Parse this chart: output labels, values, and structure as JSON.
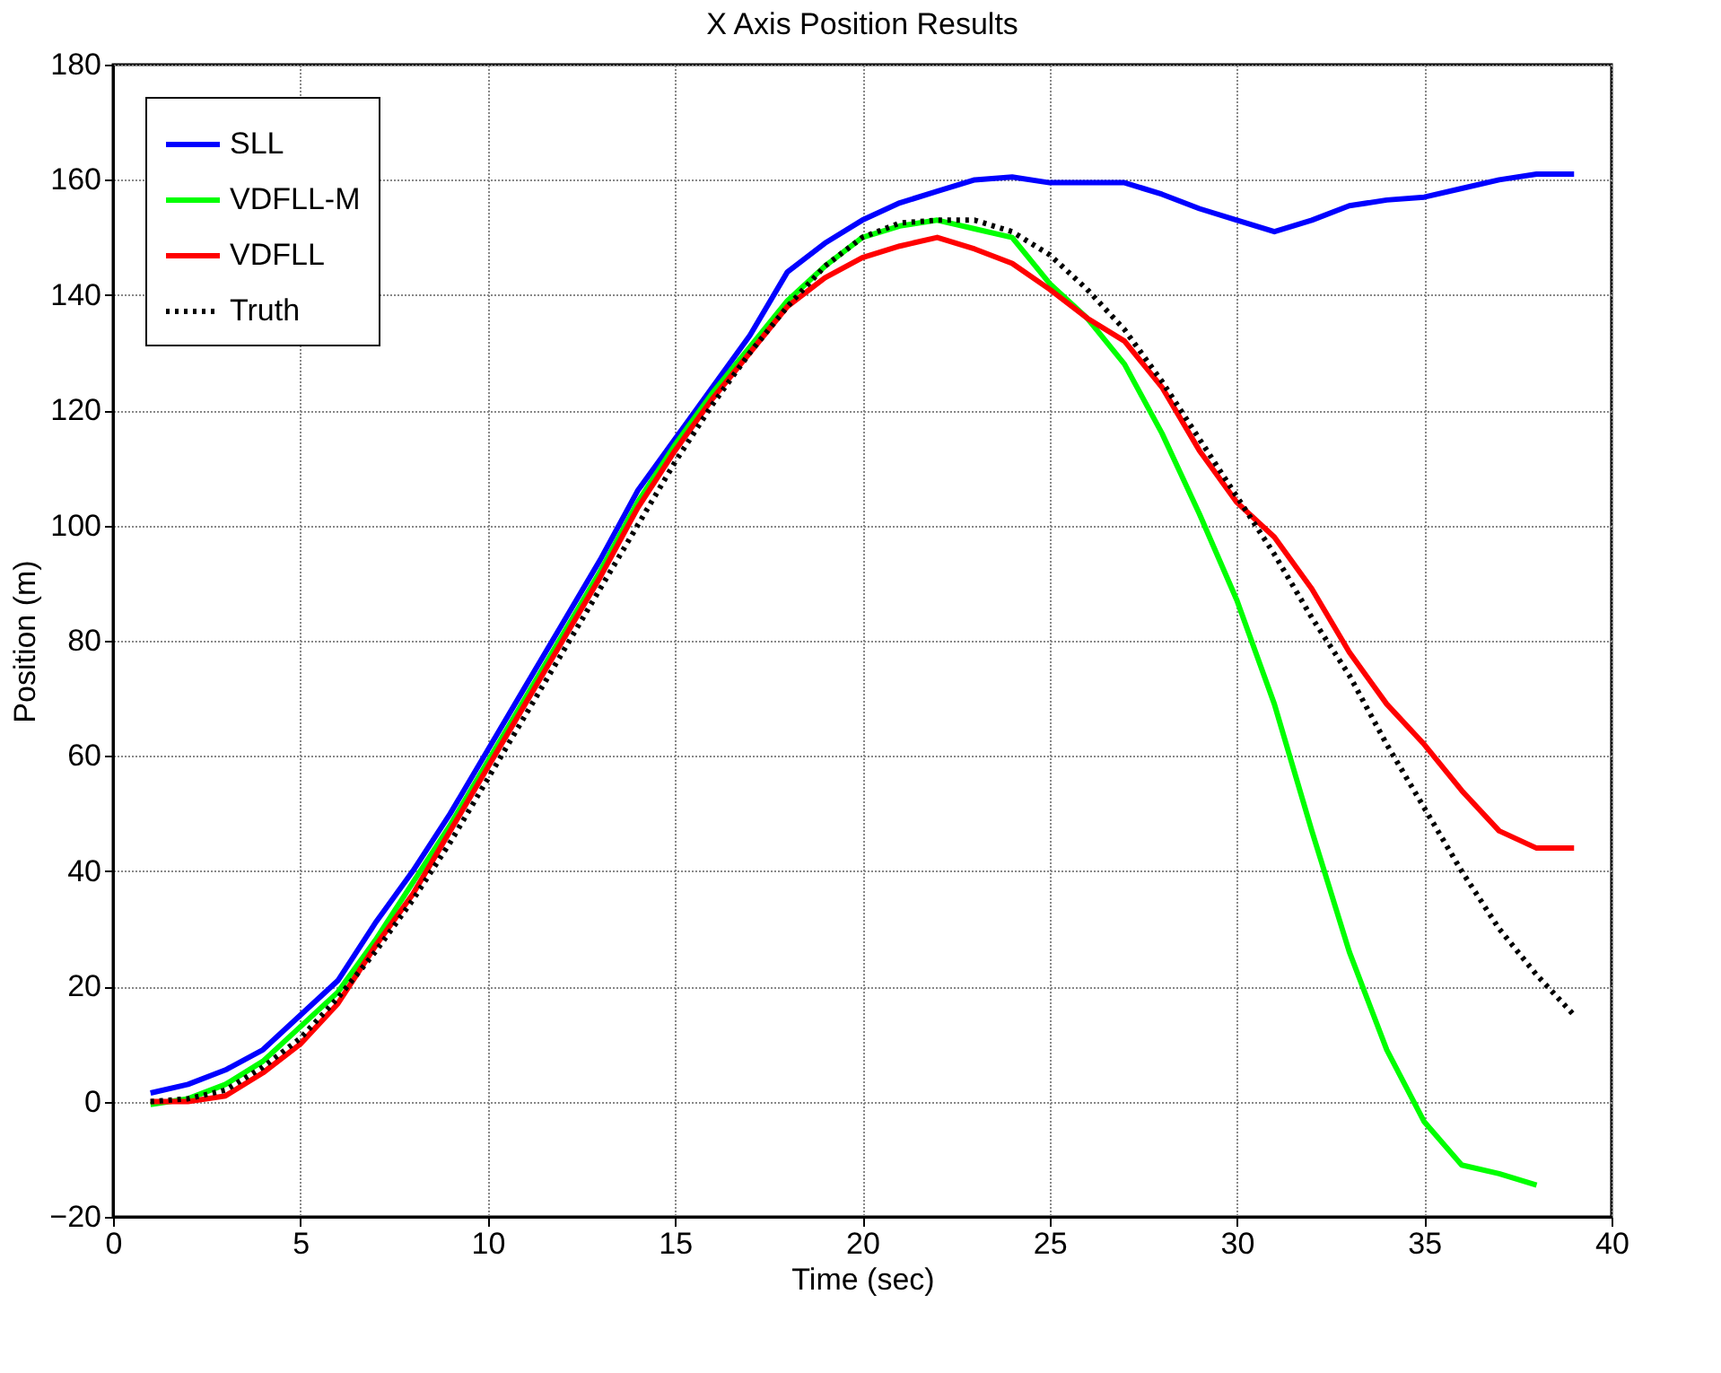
{
  "chart_data": {
    "type": "line",
    "title": "X Axis Position Results",
    "xlabel": "Time (sec)",
    "ylabel": "Position (m)",
    "xlim": [
      0,
      40
    ],
    "xticks": [
      0,
      5,
      10,
      15,
      20,
      25,
      30,
      35,
      40
    ],
    "ylim": [
      -20,
      180
    ],
    "yticks": [
      -20,
      0,
      20,
      40,
      60,
      80,
      100,
      120,
      140,
      160,
      180
    ],
    "grid": true,
    "legend": "top left",
    "x": [
      1,
      2,
      3,
      4,
      5,
      6,
      7,
      8,
      9,
      10,
      11,
      12,
      13,
      14,
      15,
      16,
      17,
      18,
      19,
      20,
      21,
      22,
      23,
      24,
      25,
      26,
      27,
      28,
      29,
      30,
      31,
      32,
      33,
      34,
      35,
      36,
      37,
      38,
      39
    ],
    "series": [
      {
        "name": "SLL",
        "color": "#0000ff",
        "line_style": "solid",
        "values": [
          1.5,
          3,
          5.5,
          9,
          15,
          21,
          31,
          40,
          50,
          61,
          72,
          83,
          94,
          106,
          115,
          124,
          133,
          144,
          149,
          153,
          156,
          158,
          160,
          160.5,
          159.5,
          159.5,
          159.5,
          157.5,
          155,
          153,
          151,
          153,
          155.5,
          156.5,
          157,
          158.5,
          160,
          161,
          161
        ]
      },
      {
        "name": "VDFLL-M",
        "color": "#00ff00",
        "line_style": "solid",
        "x": [
          1,
          2,
          3,
          4,
          5,
          6,
          7,
          8,
          9,
          10,
          11,
          12,
          13,
          14,
          15,
          16,
          17,
          18,
          19,
          20,
          21,
          22,
          23,
          24,
          25,
          26,
          27,
          28,
          29,
          30,
          31,
          32,
          33,
          34,
          35,
          36,
          37,
          38
        ],
        "values": [
          -0.5,
          0.5,
          3,
          7,
          13,
          19,
          28,
          38,
          48,
          59,
          70,
          81,
          92,
          104,
          114,
          123,
          131,
          139,
          145,
          150,
          152,
          153,
          151.5,
          150,
          142,
          136,
          128,
          116,
          102,
          87,
          69,
          47,
          26,
          9,
          -3.5,
          -11,
          -12.5,
          -14.5
        ]
      },
      {
        "name": "VDFLL",
        "color": "#ff0000",
        "line_style": "solid",
        "values": [
          0,
          0,
          1,
          5,
          10,
          17,
          27,
          36,
          47,
          58,
          69,
          80,
          91,
          103,
          113,
          122,
          130,
          138,
          143,
          146.5,
          148.5,
          150,
          148,
          145.5,
          141,
          136,
          132,
          124,
          113,
          104,
          98,
          89,
          78,
          69,
          62,
          54,
          47,
          44,
          44
        ]
      },
      {
        "name": "Truth",
        "color": "#000000",
        "line_style": "dotted",
        "values": [
          0,
          0.5,
          2,
          6,
          11,
          18,
          26,
          35,
          45,
          56,
          67,
          78,
          89,
          100,
          111,
          121,
          130,
          138,
          145,
          150,
          152.5,
          153,
          153,
          151,
          147,
          141,
          134,
          125,
          115,
          105,
          95,
          84,
          74,
          62,
          51,
          40,
          30,
          22,
          15
        ]
      }
    ]
  }
}
